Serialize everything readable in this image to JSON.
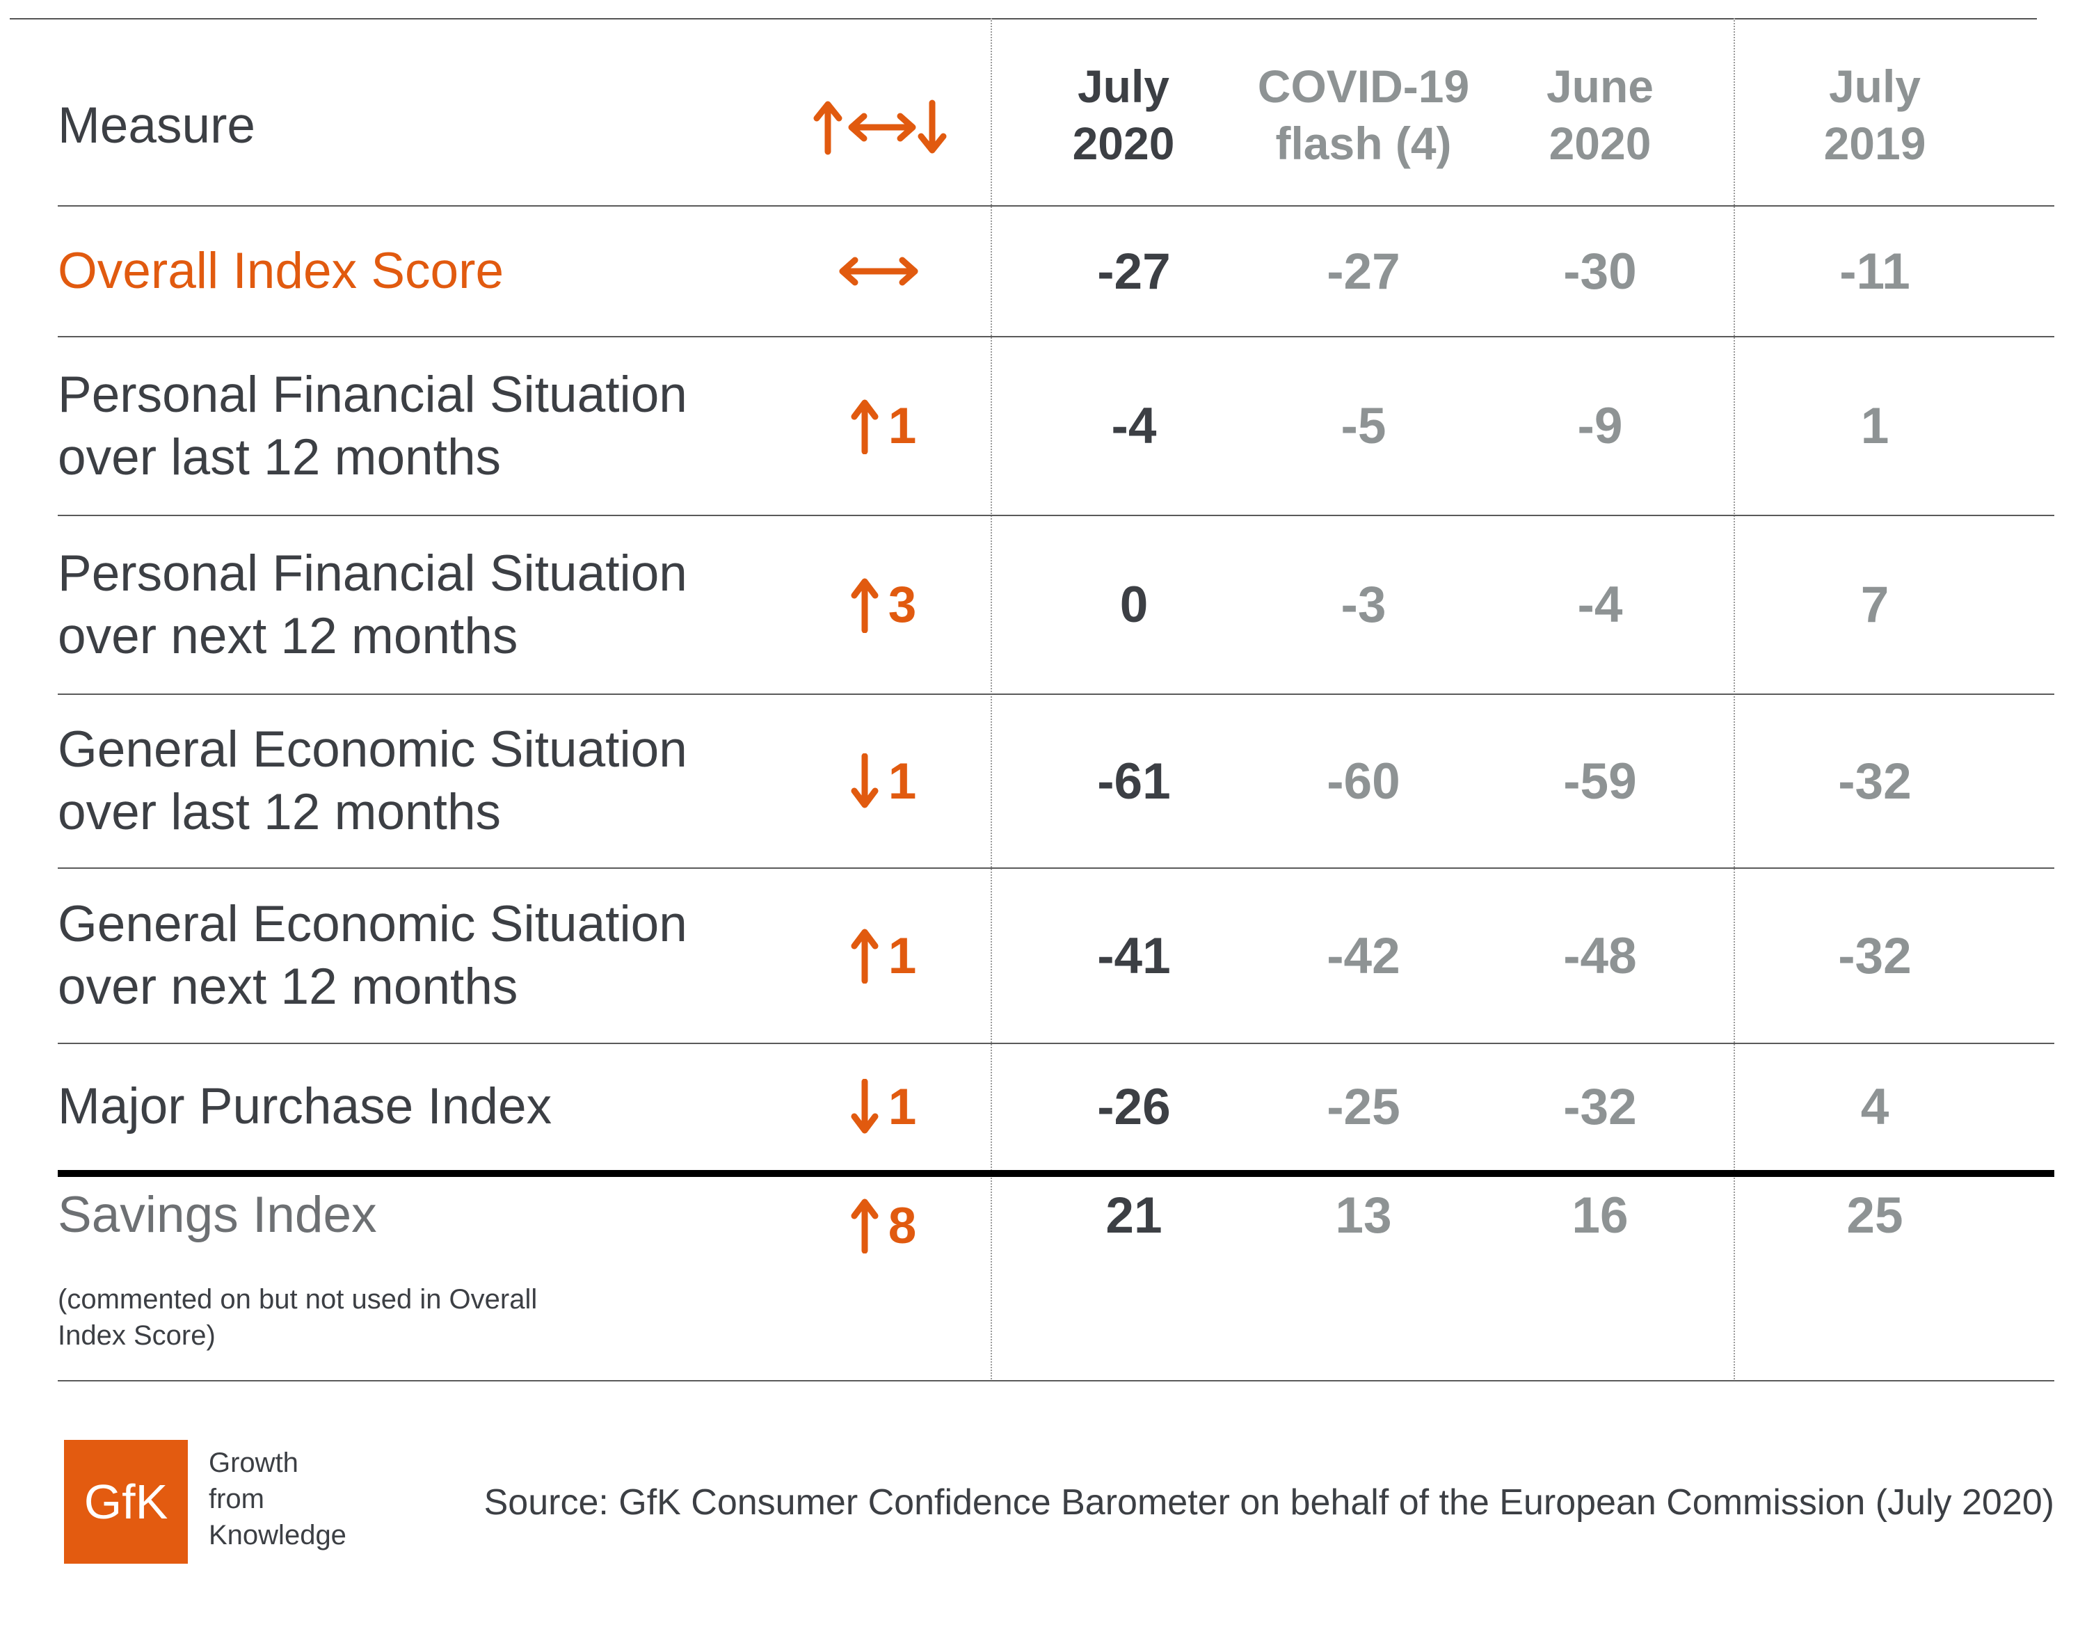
{
  "header": {
    "measure_label": "Measure",
    "trend_legend": [
      "up",
      "flat",
      "down"
    ],
    "columns": [
      {
        "line1": "July",
        "line2": "2020"
      },
      {
        "line1": "COVID-19",
        "line2": "flash (4)"
      },
      {
        "line1": "June",
        "line2": "2020"
      },
      {
        "line1": "July",
        "line2": "2019"
      }
    ]
  },
  "chart_data": {
    "type": "table",
    "columns": [
      "Measure",
      "Change",
      "July 2020",
      "COVID-19 flash (4)",
      "June 2020",
      "July 2019"
    ],
    "rows": [
      {
        "label": "Overall Index Score",
        "change_dir": "flat",
        "change_val": "",
        "values": [
          "-27",
          "-27",
          "-30",
          "-11"
        ]
      },
      {
        "label": "Personal Financial Situation over last 12 months",
        "change_dir": "up",
        "change_val": "1",
        "values": [
          "-4",
          "-5",
          "-9",
          "1"
        ]
      },
      {
        "label": "Personal Financial Situation over next 12 months",
        "change_dir": "up",
        "change_val": "3",
        "values": [
          "0",
          "-3",
          "-4",
          "7"
        ]
      },
      {
        "label": "General Economic Situation over last 12 months",
        "change_dir": "down",
        "change_val": "1",
        "values": [
          "-61",
          "-60",
          "-59",
          "-32"
        ]
      },
      {
        "label": "General Economic Situation over next 12 months",
        "change_dir": "up",
        "change_val": "1",
        "values": [
          "-41",
          "-42",
          "-48",
          "-32"
        ]
      },
      {
        "label": "Major Purchase Index",
        "change_dir": "down",
        "change_val": "1",
        "values": [
          "-26",
          "-25",
          "-32",
          "4"
        ]
      },
      {
        "label": "Savings Index",
        "note": "(commented on but not used in Overall Index Score)",
        "change_dir": "up",
        "change_val": "8",
        "values": [
          "21",
          "13",
          "16",
          "25"
        ]
      }
    ]
  },
  "colors": {
    "accent_orange": "#e15a0f",
    "text_dark": "#3c3f44",
    "text_grey": "#8e9394"
  },
  "footer": {
    "logo_text": "GfK",
    "tagline": [
      "Growth",
      "from",
      "Knowledge"
    ],
    "source": "Source: GfK Consumer Confidence Barometer on behalf of the European Commission (July 2020)"
  }
}
